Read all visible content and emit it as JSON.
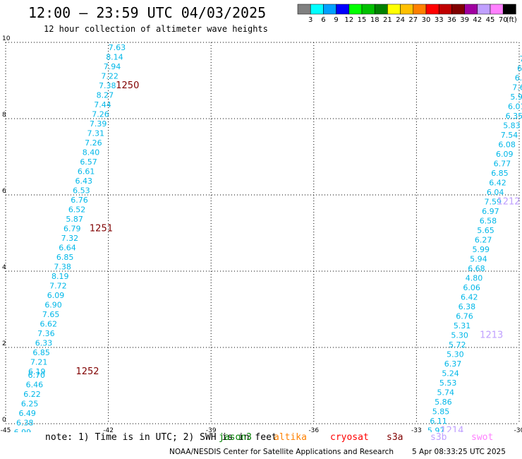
{
  "header": {
    "title": "12:00 — 23:59 UTC 04/03/2025",
    "subtitle": "12 hour collection of altimeter wave heights"
  },
  "colorbar": {
    "ticks": [
      "3",
      "6",
      "9",
      "12",
      "15",
      "18",
      "21",
      "24",
      "27",
      "30",
      "33",
      "36",
      "39",
      "42",
      "45",
      "70"
    ],
    "unit": "(ft)",
    "colors": [
      "#808080",
      "#00ffff",
      "#00a0ff",
      "#0000ff",
      "#00ff00",
      "#00c000",
      "#008000",
      "#ffff00",
      "#ffc000",
      "#ff8000",
      "#ff0000",
      "#c00000",
      "#800000",
      "#a000a0",
      "#c0a0ff",
      "#ff80ff",
      "#000000"
    ]
  },
  "axes": {
    "x_ticks": [
      "-45",
      "-42",
      "-39",
      "-36",
      "-33",
      "-30"
    ],
    "y_ticks": [
      "0",
      "2",
      "4",
      "6",
      "8",
      "10"
    ]
  },
  "tracks": [
    {
      "color": "#00b7e8",
      "points": [
        {
          "lon": -42.0,
          "lat": 9.8,
          "v": "7.63"
        },
        {
          "lon": -42.07,
          "lat": 9.55,
          "v": "8.14"
        },
        {
          "lon": -42.14,
          "lat": 9.3,
          "v": "7.94"
        },
        {
          "lon": -42.21,
          "lat": 9.05,
          "v": "7.22"
        },
        {
          "lon": -42.28,
          "lat": 8.8,
          "v": "7.38"
        },
        {
          "lon": -42.35,
          "lat": 8.55,
          "v": "8.27"
        },
        {
          "lon": -42.42,
          "lat": 8.3,
          "v": "7.44"
        },
        {
          "lon": -42.48,
          "lat": 8.05,
          "v": "7.26"
        },
        {
          "lon": -42.55,
          "lat": 7.8,
          "v": "7.39"
        },
        {
          "lon": -42.62,
          "lat": 7.55,
          "v": "7.31"
        },
        {
          "lon": -42.69,
          "lat": 7.3,
          "v": "7.26"
        },
        {
          "lon": -42.76,
          "lat": 7.05,
          "v": "8.40"
        },
        {
          "lon": -42.83,
          "lat": 6.8,
          "v": "6.57"
        },
        {
          "lon": -42.9,
          "lat": 6.55,
          "v": "6.61"
        },
        {
          "lon": -42.97,
          "lat": 6.3,
          "v": "6.43"
        },
        {
          "lon": -43.04,
          "lat": 6.05,
          "v": "6.53"
        },
        {
          "lon": -43.1,
          "lat": 5.8,
          "v": "6.76"
        },
        {
          "lon": -43.17,
          "lat": 5.55,
          "v": "6.52"
        },
        {
          "lon": -43.24,
          "lat": 5.3,
          "v": "5.87"
        },
        {
          "lon": -43.31,
          "lat": 5.05,
          "v": "6.79"
        },
        {
          "lon": -43.38,
          "lat": 4.8,
          "v": "7.32"
        },
        {
          "lon": -43.45,
          "lat": 4.55,
          "v": "6.64"
        },
        {
          "lon": -43.52,
          "lat": 4.3,
          "v": "6.85"
        },
        {
          "lon": -43.59,
          "lat": 4.05,
          "v": "7.38"
        },
        {
          "lon": -43.66,
          "lat": 3.8,
          "v": "8.19"
        },
        {
          "lon": -43.72,
          "lat": 3.55,
          "v": "7.72"
        },
        {
          "lon": -43.79,
          "lat": 3.3,
          "v": "6.09"
        },
        {
          "lon": -43.86,
          "lat": 3.05,
          "v": "6.90"
        },
        {
          "lon": -43.93,
          "lat": 2.8,
          "v": "7.65"
        },
        {
          "lon": -44.0,
          "lat": 2.55,
          "v": "6.62"
        },
        {
          "lon": -44.07,
          "lat": 2.3,
          "v": "7.36"
        },
        {
          "lon": -44.14,
          "lat": 2.05,
          "v": "6.33"
        },
        {
          "lon": -44.21,
          "lat": 1.8,
          "v": "6.85"
        },
        {
          "lon": -44.28,
          "lat": 1.55,
          "v": "7.21"
        },
        {
          "lon": -44.34,
          "lat": 1.3,
          "v": "6.19"
        },
        {
          "lon": -44.35,
          "lat": 1.2,
          "v": "6.70"
        },
        {
          "lon": -44.41,
          "lat": 0.95,
          "v": "6.46"
        },
        {
          "lon": -44.48,
          "lat": 0.7,
          "v": "6.22"
        },
        {
          "lon": -44.55,
          "lat": 0.45,
          "v": "6.25"
        },
        {
          "lon": -44.62,
          "lat": 0.2,
          "v": "6.49"
        },
        {
          "lon": -44.69,
          "lat": -0.05,
          "v": "6.38"
        },
        {
          "lon": -44.76,
          "lat": -0.3,
          "v": "6.99"
        },
        {
          "lon": -44.83,
          "lat": -0.55,
          "v": "5.76"
        }
      ]
    },
    {
      "color": "#00b7e8",
      "points": [
        {
          "lon": -29.85,
          "lat": 10.0,
          "v": "6.66"
        },
        {
          "lon": -29.92,
          "lat": 9.75,
          "v": "8.09"
        },
        {
          "lon": -29.99,
          "lat": 9.5,
          "v": "7.48"
        },
        {
          "lon": -30.06,
          "lat": 9.25,
          "v": "6.12"
        },
        {
          "lon": -30.13,
          "lat": 9.0,
          "v": "6.80"
        },
        {
          "lon": -30.2,
          "lat": 8.75,
          "v": "7.65"
        },
        {
          "lon": -30.26,
          "lat": 8.5,
          "v": "5.99"
        },
        {
          "lon": -30.33,
          "lat": 8.25,
          "v": "6.01"
        },
        {
          "lon": -30.4,
          "lat": 8.0,
          "v": "6.35"
        },
        {
          "lon": -30.47,
          "lat": 7.75,
          "v": "5.83"
        },
        {
          "lon": -30.54,
          "lat": 7.5,
          "v": "7.54"
        },
        {
          "lon": -30.61,
          "lat": 7.25,
          "v": "6.08"
        },
        {
          "lon": -30.68,
          "lat": 7.0,
          "v": "6.09"
        },
        {
          "lon": -30.75,
          "lat": 6.75,
          "v": "6.77"
        },
        {
          "lon": -30.82,
          "lat": 6.5,
          "v": "6.85"
        },
        {
          "lon": -30.88,
          "lat": 6.25,
          "v": "6.42"
        },
        {
          "lon": -30.95,
          "lat": 6.0,
          "v": "6.04"
        },
        {
          "lon": -31.02,
          "lat": 5.75,
          "v": "7.59"
        },
        {
          "lon": -31.09,
          "lat": 5.5,
          "v": "6.97"
        },
        {
          "lon": -31.16,
          "lat": 5.25,
          "v": "6.58"
        },
        {
          "lon": -31.23,
          "lat": 5.0,
          "v": "5.65"
        },
        {
          "lon": -31.3,
          "lat": 4.75,
          "v": "6.27"
        },
        {
          "lon": -31.37,
          "lat": 4.5,
          "v": "5.99"
        },
        {
          "lon": -31.44,
          "lat": 4.25,
          "v": "5.94"
        },
        {
          "lon": -31.5,
          "lat": 4.0,
          "v": "6.68"
        },
        {
          "lon": -31.57,
          "lat": 3.75,
          "v": "4.80"
        },
        {
          "lon": -31.64,
          "lat": 3.5,
          "v": "6.06"
        },
        {
          "lon": -31.71,
          "lat": 3.25,
          "v": "6.42"
        },
        {
          "lon": -31.78,
          "lat": 3.0,
          "v": "6.38"
        },
        {
          "lon": -31.85,
          "lat": 2.75,
          "v": "6.76"
        },
        {
          "lon": -31.92,
          "lat": 2.5,
          "v": "5.31"
        },
        {
          "lon": -31.99,
          "lat": 2.25,
          "v": "5.30"
        },
        {
          "lon": -32.06,
          "lat": 2.0,
          "v": "5.72"
        },
        {
          "lon": -32.12,
          "lat": 1.75,
          "v": "5.30"
        },
        {
          "lon": -32.19,
          "lat": 1.5,
          "v": "6.37"
        },
        {
          "lon": -32.26,
          "lat": 1.25,
          "v": "5.24"
        },
        {
          "lon": -32.33,
          "lat": 1.0,
          "v": "5.53"
        },
        {
          "lon": -32.4,
          "lat": 0.75,
          "v": "5.74"
        },
        {
          "lon": -32.47,
          "lat": 0.5,
          "v": "5.86"
        },
        {
          "lon": -32.54,
          "lat": 0.25,
          "v": "5.85"
        },
        {
          "lon": -32.61,
          "lat": 0.0,
          "v": "6.11"
        },
        {
          "lon": -32.68,
          "lat": -0.25,
          "v": "5.97"
        }
      ]
    }
  ],
  "pass_labels": [
    {
      "lon": -41.78,
      "lat": 8.8,
      "text": "1250",
      "color": "#800000"
    },
    {
      "lon": -42.55,
      "lat": 5.05,
      "text": "1251",
      "color": "#800000"
    },
    {
      "lon": -42.95,
      "lat": 1.3,
      "text": "1252",
      "color": "#800000"
    },
    {
      "lon": -44.25,
      "lat": -0.55,
      "text": "1253",
      "color": "#800000"
    },
    {
      "lon": -29.7,
      "lat": 9.55,
      "text": "1211",
      "color": "#c0a0ff"
    },
    {
      "lon": -30.65,
      "lat": 5.75,
      "text": "1212",
      "color": "#c0a0ff"
    },
    {
      "lon": -31.15,
      "lat": 2.25,
      "text": "1213",
      "color": "#c0a0ff"
    },
    {
      "lon": -32.3,
      "lat": -0.25,
      "text": "1214",
      "color": "#c0a0ff"
    }
  ],
  "notes": {
    "note_text": "note: 1) Time is in UTC; 2) SWH is in feet",
    "satellites": [
      {
        "name": "jason3",
        "color": "#008000"
      },
      {
        "name": "altika",
        "color": "#ff8000"
      },
      {
        "name": "cryosat",
        "color": "#ff0000"
      },
      {
        "name": "s3a",
        "color": "#800000"
      },
      {
        "name": "s3b",
        "color": "#c0a0ff"
      },
      {
        "name": "swot",
        "color": "#ff80ff"
      }
    ]
  },
  "footer": {
    "credit": "NOAA/NESDIS Center for Satellite Applications and Research",
    "timestamp": "5 Apr 08:33:25 UTC 2025"
  }
}
